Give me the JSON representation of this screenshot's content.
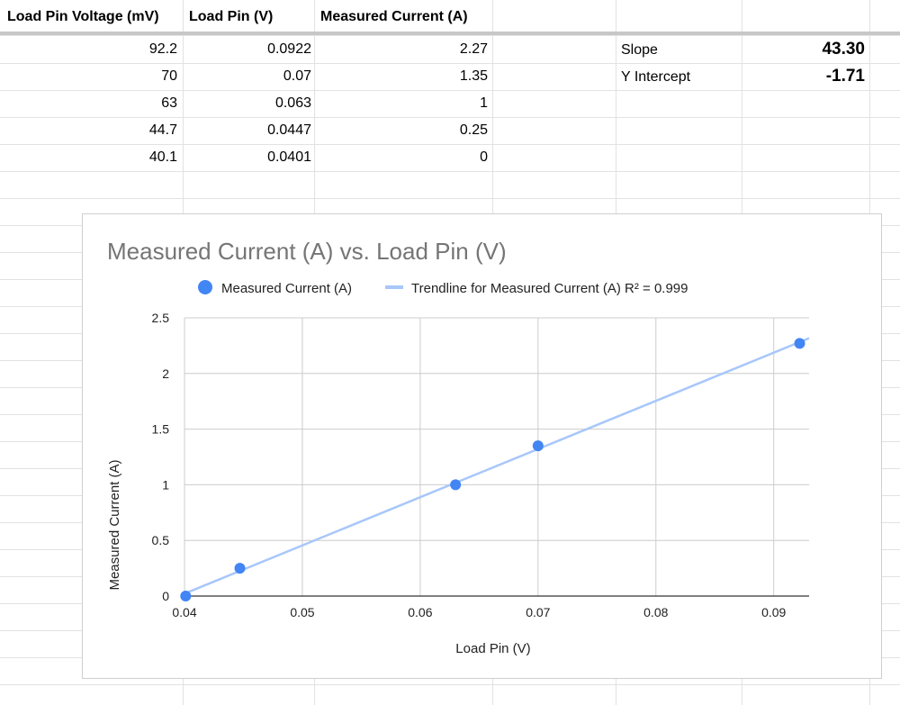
{
  "columns": [
    "Load Pin Voltage (mV)",
    "Load Pin (V)",
    "Measured Current (A)"
  ],
  "rows": [
    [
      "92.2",
      "0.0922",
      "2.27"
    ],
    [
      "70",
      "0.07",
      "1.35"
    ],
    [
      "63",
      "0.063",
      "1"
    ],
    [
      "44.7",
      "0.0447",
      "0.25"
    ],
    [
      "40.1",
      "0.0401",
      "0"
    ]
  ],
  "stats": {
    "slope_label": "Slope",
    "slope_value": "43.30",
    "intercept_label": "Y Intercept",
    "intercept_value": "-1.71"
  },
  "colors": {
    "point": "#4285f4",
    "trendline": "#a8c7fa",
    "title": "#757575",
    "grid": "#cccccc"
  },
  "chart_data": {
    "type": "scatter",
    "title": "Measured Current (A) vs. Load Pin (V)",
    "xlabel": "Load Pin (V)",
    "ylabel": "Measured Current (A)",
    "xlim": [
      0.04,
      0.093
    ],
    "ylim": [
      0,
      2.5
    ],
    "x_ticks": [
      0.04,
      0.05,
      0.06,
      0.07,
      0.08,
      0.09
    ],
    "x_tick_labels": [
      "0.04",
      "0.05",
      "0.06",
      "0.07",
      "0.08",
      "0.09"
    ],
    "y_ticks": [
      0,
      0.5,
      1,
      1.5,
      2,
      2.5
    ],
    "y_tick_labels": [
      "0",
      "0.5",
      "1",
      "1.5",
      "2",
      "2.5"
    ],
    "grid": true,
    "legend_position": "top",
    "series": [
      {
        "name": "Measured Current (A)",
        "x": [
          0.0922,
          0.07,
          0.063,
          0.0447,
          0.0401
        ],
        "y": [
          2.27,
          1.35,
          1,
          0.25,
          0
        ]
      }
    ],
    "trendline": {
      "name": "Trendline for Measured Current (A) R² = 0.999",
      "slope": 43.3,
      "intercept": -1.71,
      "x_range": [
        0.04,
        0.093
      ]
    }
  }
}
